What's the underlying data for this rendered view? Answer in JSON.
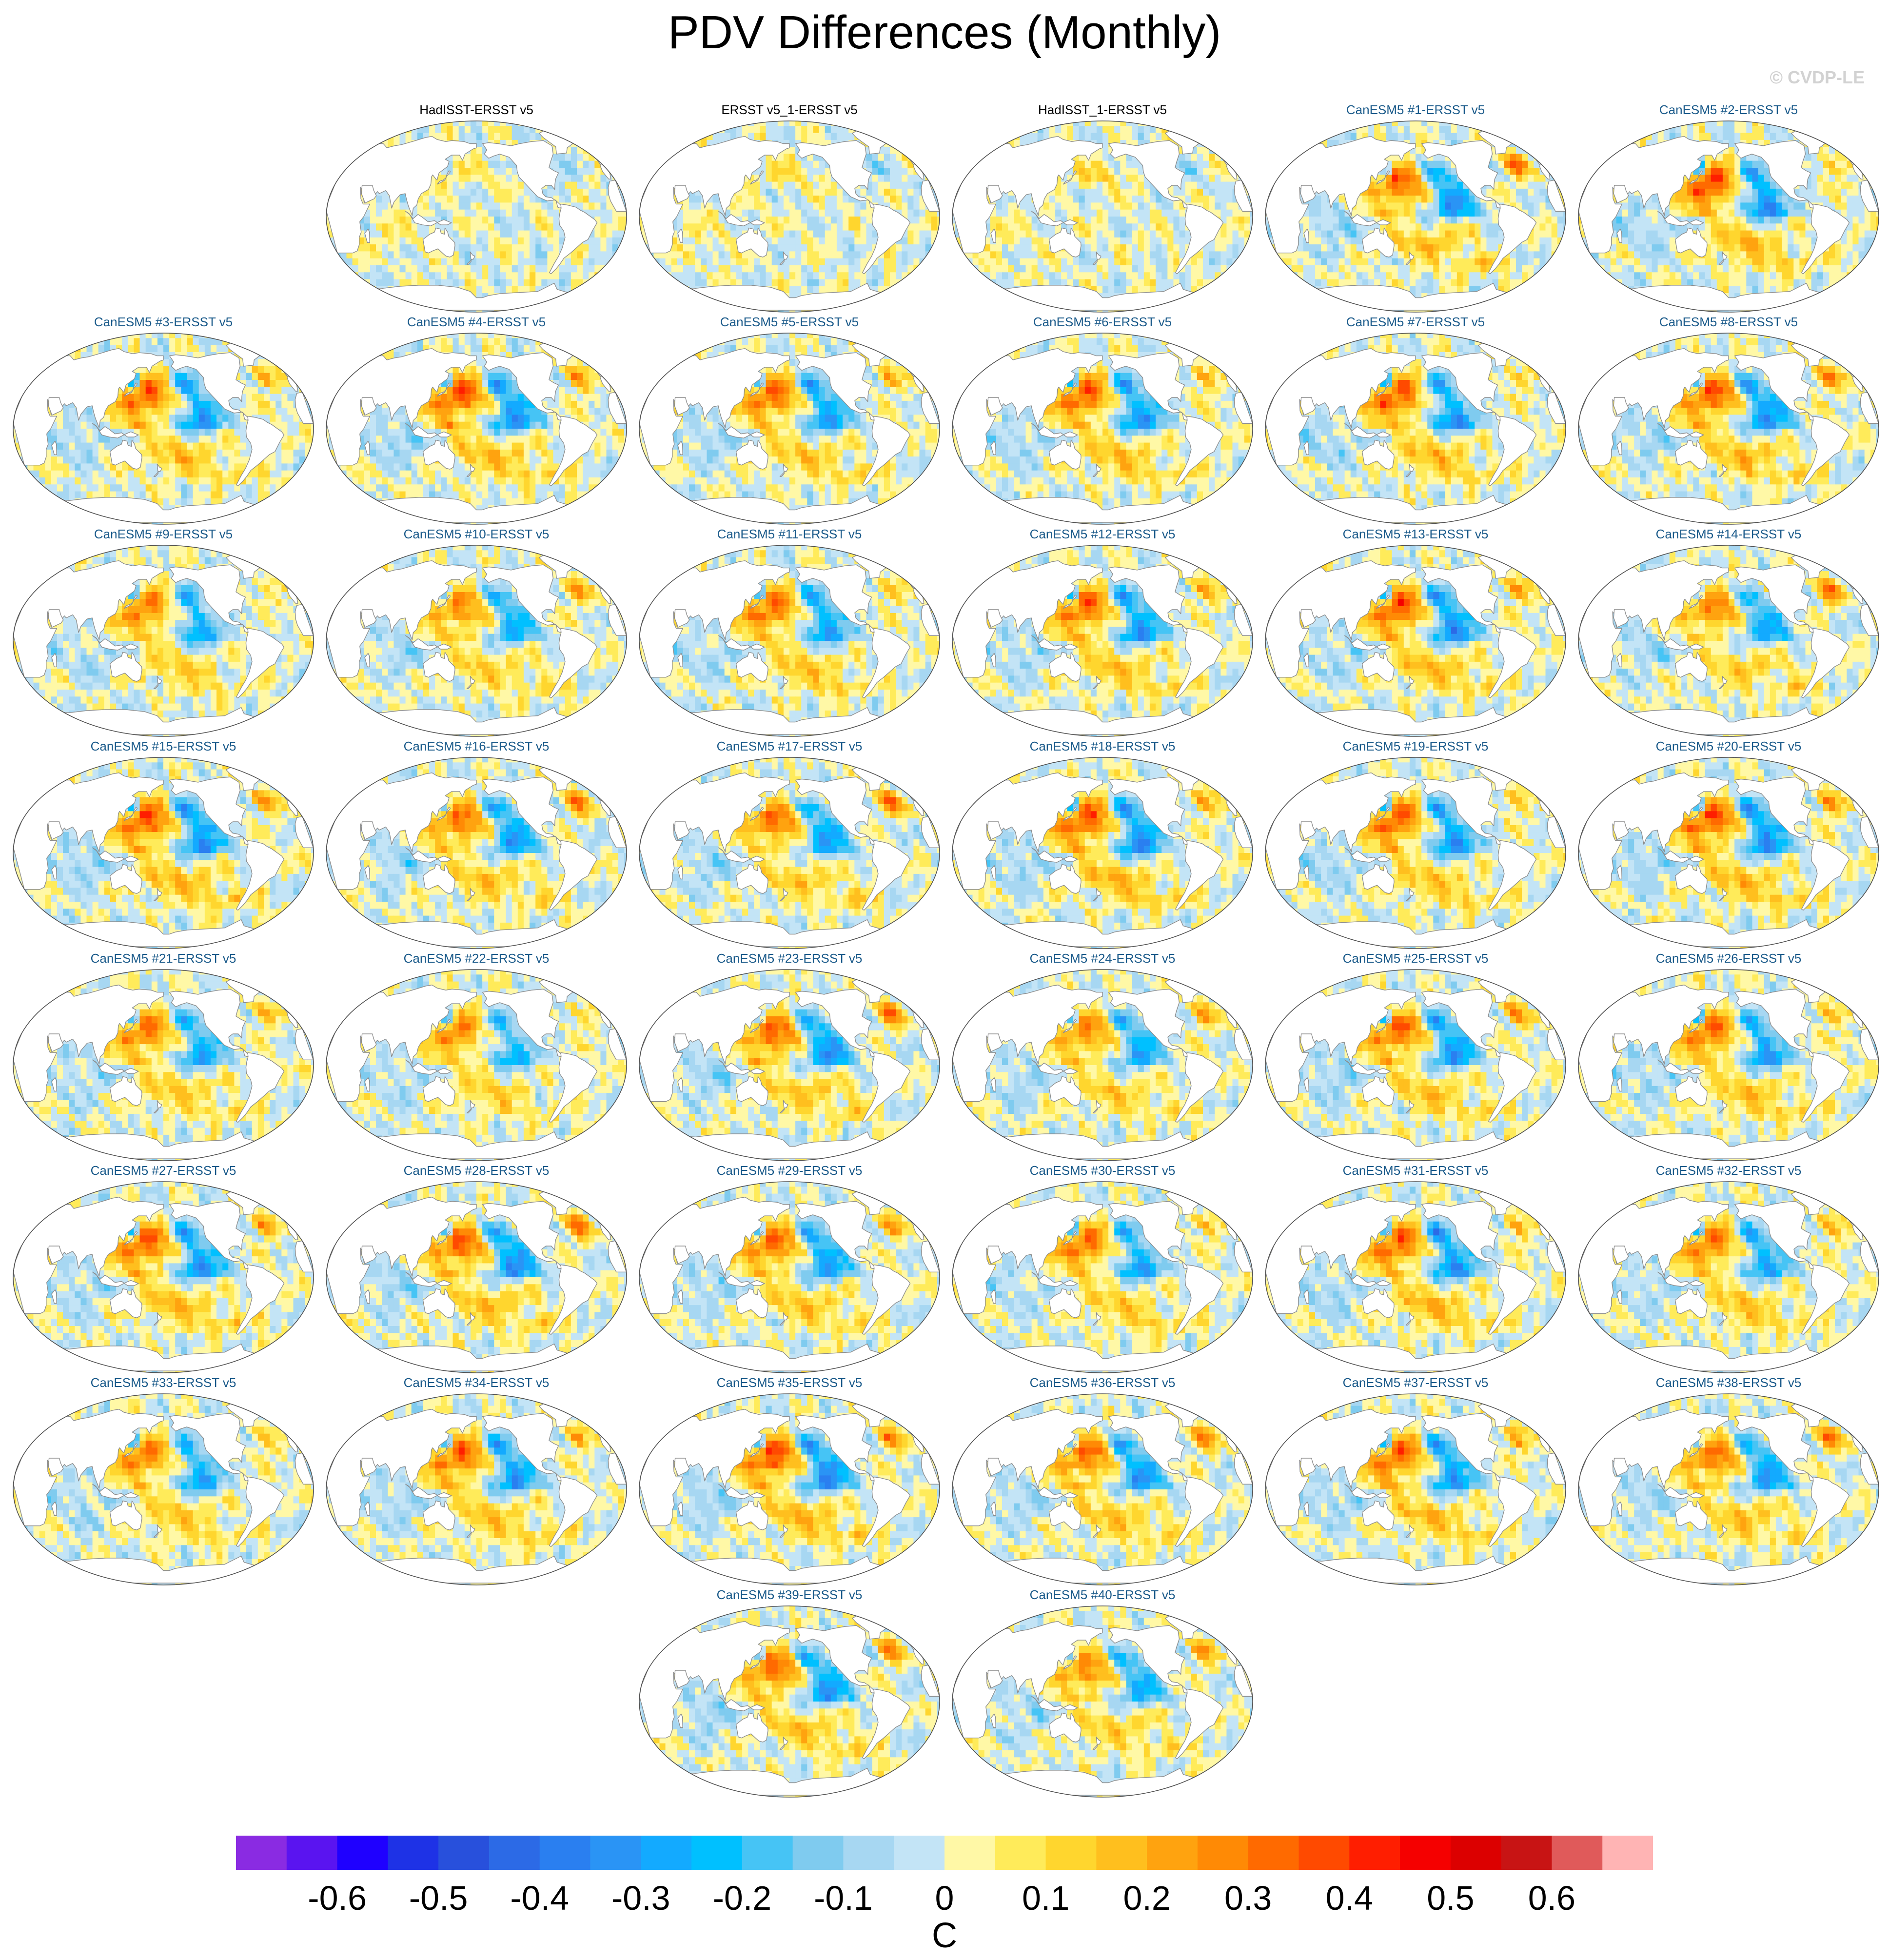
{
  "chart_data": {
    "type": "map-panels",
    "title": "PDV Differences (Monthly)",
    "credit": "© CVDP-LE",
    "colorbar": {
      "unit": "C",
      "tick_labels": [
        "-0.6",
        "-0.5",
        "-0.4",
        "-0.3",
        "-0.2",
        "-0.1",
        "0",
        "0.1",
        "0.2",
        "0.3",
        "0.4",
        "0.5",
        "0.6"
      ],
      "colors": [
        "#8a2be2",
        "#5a14f0",
        "#1f00ff",
        "#1e32e6",
        "#2850dc",
        "#2c6ae6",
        "#2a7ff0",
        "#2a94f5",
        "#13aaff",
        "#00c0ff",
        "#46c4f5",
        "#7fcbef",
        "#a7d7f2",
        "#c3e4f6",
        "#fff8a6",
        "#ffeb5a",
        "#ffd62e",
        "#ffbf1e",
        "#ffa30f",
        "#ff8a05",
        "#ff6a00",
        "#ff4a00",
        "#ff1e00",
        "#f50000",
        "#dc0000",
        "#c81414",
        "#e05a5a",
        "#ffb4b4"
      ],
      "range": [
        -0.7,
        0.7
      ],
      "step": 0.05
    },
    "panels": [
      {
        "title": "HadISST-ERSST v5",
        "observed": true
      },
      {
        "title": "ERSST v5_1-ERSST v5",
        "observed": true
      },
      {
        "title": "HadISST_1-ERSST v5",
        "observed": true
      },
      {
        "title": "CanESM5 #1-ERSST v5",
        "observed": false
      },
      {
        "title": "CanESM5 #2-ERSST v5",
        "observed": false
      },
      {
        "title": "CanESM5 #3-ERSST v5",
        "observed": false
      },
      {
        "title": "CanESM5 #4-ERSST v5",
        "observed": false
      },
      {
        "title": "CanESM5 #5-ERSST v5",
        "observed": false
      },
      {
        "title": "CanESM5 #6-ERSST v5",
        "observed": false
      },
      {
        "title": "CanESM5 #7-ERSST v5",
        "observed": false
      },
      {
        "title": "CanESM5 #8-ERSST v5",
        "observed": false
      },
      {
        "title": "CanESM5 #9-ERSST v5",
        "observed": false
      },
      {
        "title": "CanESM5 #10-ERSST v5",
        "observed": false
      },
      {
        "title": "CanESM5 #11-ERSST v5",
        "observed": false
      },
      {
        "title": "CanESM5 #12-ERSST v5",
        "observed": false
      },
      {
        "title": "CanESM5 #13-ERSST v5",
        "observed": false
      },
      {
        "title": "CanESM5 #14-ERSST v5",
        "observed": false
      },
      {
        "title": "CanESM5 #15-ERSST v5",
        "observed": false
      },
      {
        "title": "CanESM5 #16-ERSST v5",
        "observed": false
      },
      {
        "title": "CanESM5 #17-ERSST v5",
        "observed": false
      },
      {
        "title": "CanESM5 #18-ERSST v5",
        "observed": false
      },
      {
        "title": "CanESM5 #19-ERSST v5",
        "observed": false
      },
      {
        "title": "CanESM5 #20-ERSST v5",
        "observed": false
      },
      {
        "title": "CanESM5 #21-ERSST v5",
        "observed": false
      },
      {
        "title": "CanESM5 #22-ERSST v5",
        "observed": false
      },
      {
        "title": "CanESM5 #23-ERSST v5",
        "observed": false
      },
      {
        "title": "CanESM5 #24-ERSST v5",
        "observed": false
      },
      {
        "title": "CanESM5 #25-ERSST v5",
        "observed": false
      },
      {
        "title": "CanESM5 #26-ERSST v5",
        "observed": false
      },
      {
        "title": "CanESM5 #27-ERSST v5",
        "observed": false
      },
      {
        "title": "CanESM5 #28-ERSST v5",
        "observed": false
      },
      {
        "title": "CanESM5 #29-ERSST v5",
        "observed": false
      },
      {
        "title": "CanESM5 #30-ERSST v5",
        "observed": false
      },
      {
        "title": "CanESM5 #31-ERSST v5",
        "observed": false
      },
      {
        "title": "CanESM5 #32-ERSST v5",
        "observed": false
      },
      {
        "title": "CanESM5 #33-ERSST v5",
        "observed": false
      },
      {
        "title": "CanESM5 #34-ERSST v5",
        "observed": false
      },
      {
        "title": "CanESM5 #35-ERSST v5",
        "observed": false
      },
      {
        "title": "CanESM5 #36-ERSST v5",
        "observed": false
      },
      {
        "title": "CanESM5 #37-ERSST v5",
        "observed": false
      },
      {
        "title": "CanESM5 #38-ERSST v5",
        "observed": false
      },
      {
        "title": "CanESM5 #39-ERSST v5",
        "observed": false
      },
      {
        "title": "CanESM5 #40-ERSST v5",
        "observed": false
      }
    ],
    "colors": {
      "observed_title": "#000000",
      "model_title": "#1a5a8a",
      "land": "#ffffff",
      "coastline": "#8c8c8c",
      "map_border": "#505050"
    }
  }
}
